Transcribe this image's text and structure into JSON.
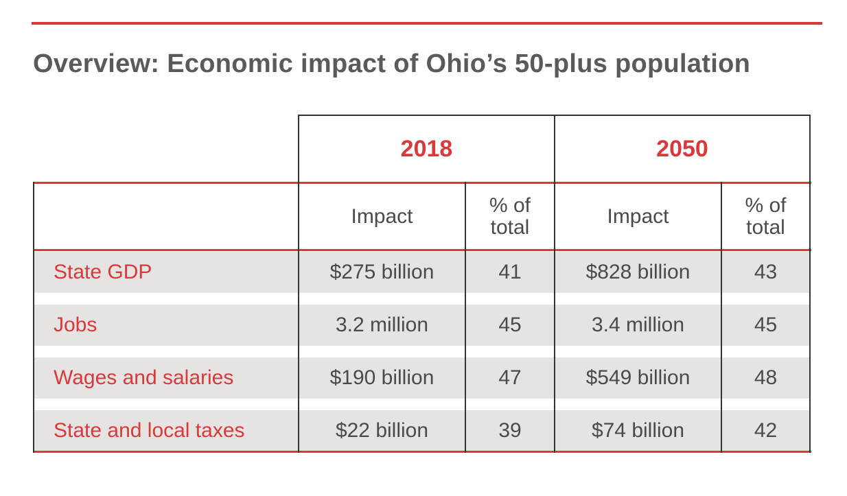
{
  "title": "Overview: Economic impact of Ohio’s 50-plus population",
  "years": [
    "2018",
    "2050"
  ],
  "column_headers": {
    "impact": "Impact",
    "pct_line1": "% of",
    "pct_line2": "total"
  },
  "rows": [
    {
      "label": "State GDP",
      "impact_2018": "$275 billion",
      "pct_2018": "41",
      "impact_2050": "$828 billion",
      "pct_2050": "43"
    },
    {
      "label": "Jobs",
      "impact_2018": "3.2 million",
      "pct_2018": "45",
      "impact_2050": "3.4 million",
      "pct_2050": "45"
    },
    {
      "label": "Wages and salaries",
      "impact_2018": "$190 billion",
      "pct_2018": "47",
      "impact_2050": "$549 billion",
      "pct_2050": "48"
    },
    {
      "label": "State and local taxes",
      "impact_2018": "$22 billion",
      "pct_2018": "39",
      "impact_2050": "$74 billion",
      "pct_2050": "42"
    }
  ],
  "colors": {
    "accent": "#d9393b",
    "text": "#4a4a4a",
    "band": "#e6e3e3"
  }
}
